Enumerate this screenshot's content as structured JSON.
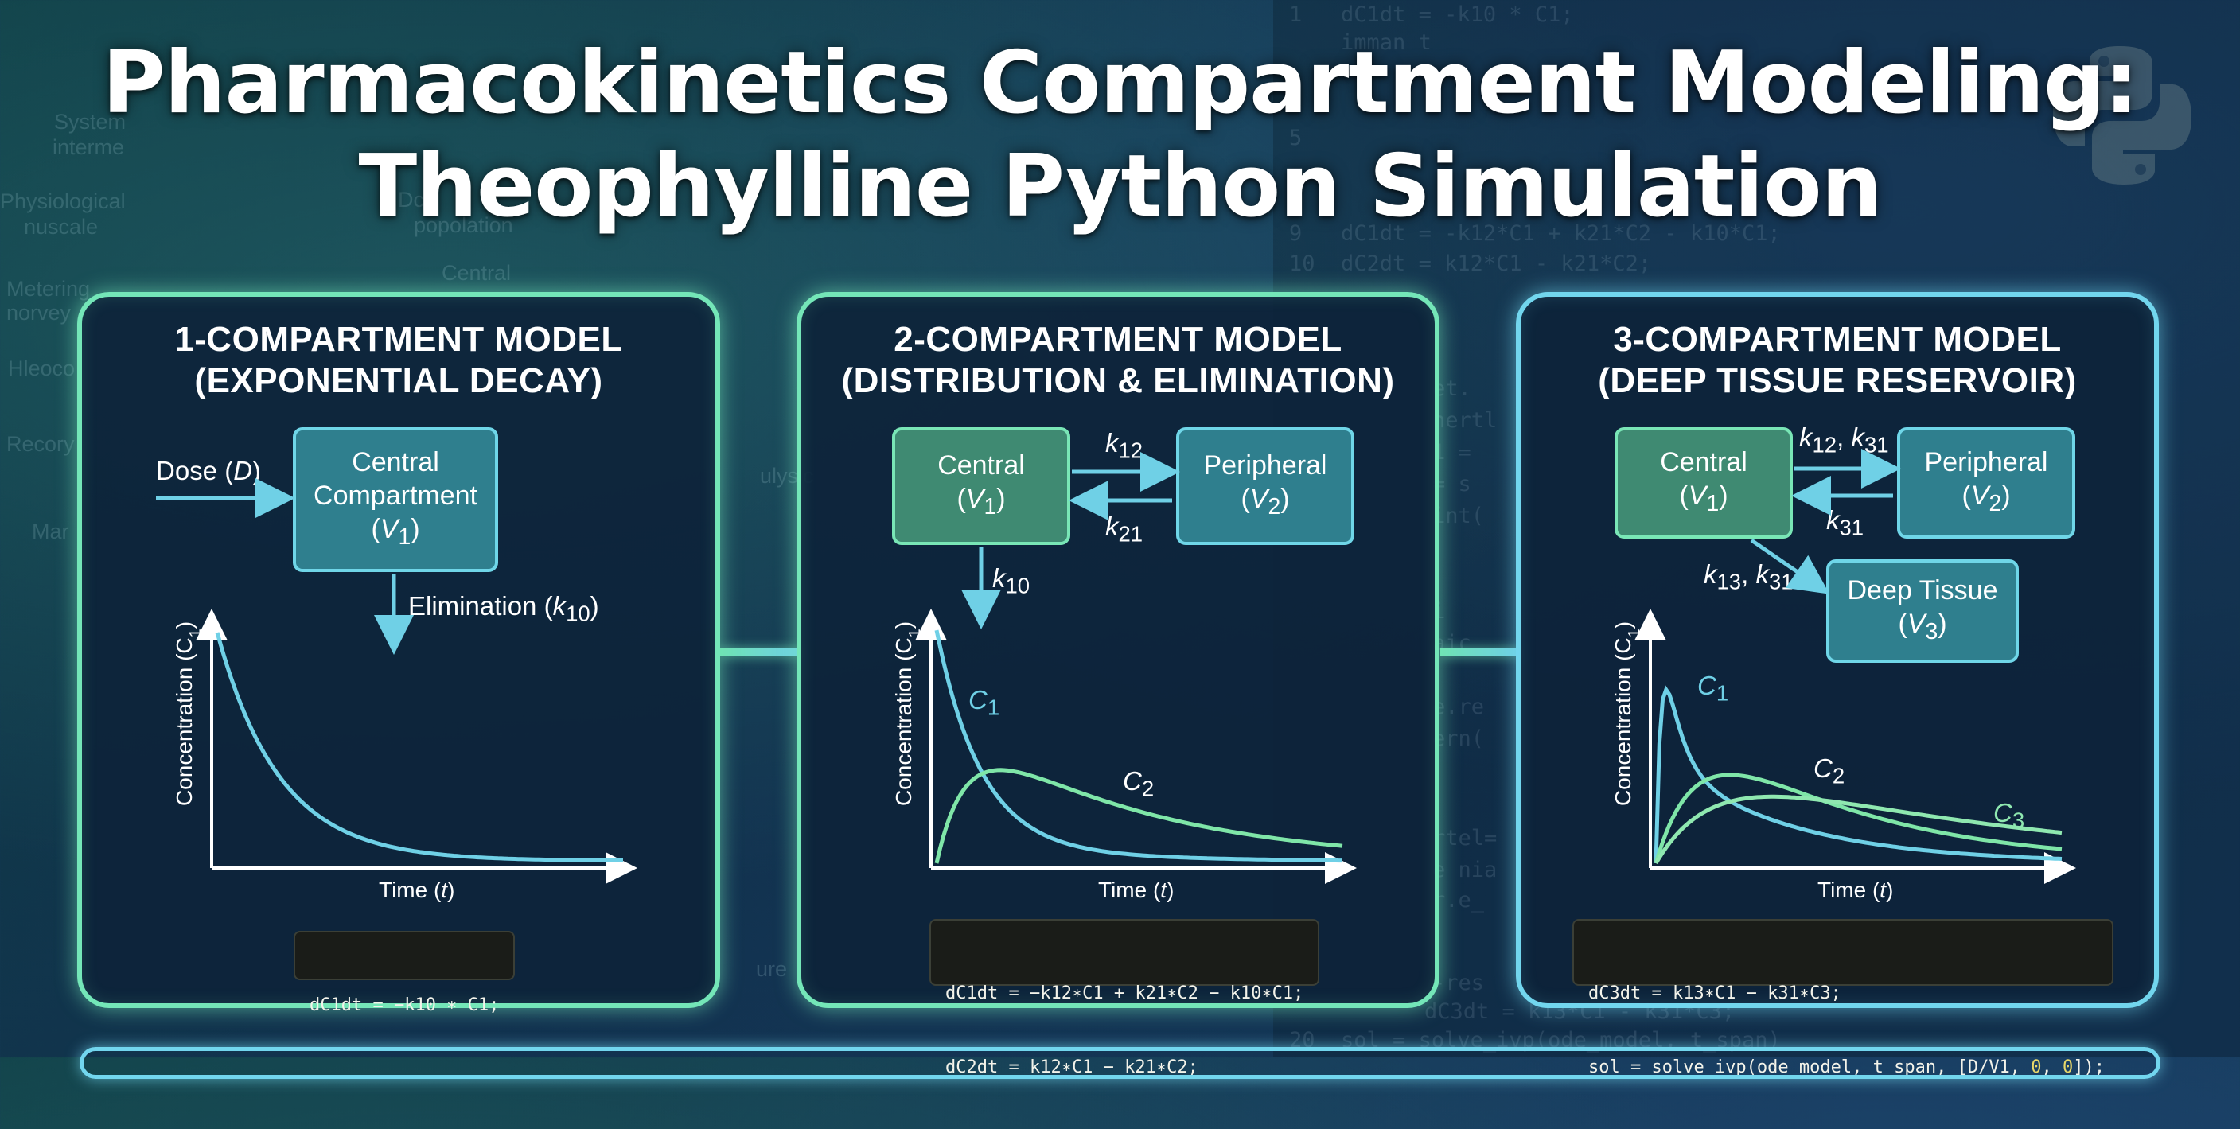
{
  "title": {
    "line1": "Pharmacokinetics Compartment Modeling:",
    "line2": "Theophylline Python Simulation"
  },
  "background": {
    "words": [
      "System",
      "interme",
      "Physiological",
      "nuscale",
      "Metering",
      "norvey",
      "Hleoco",
      "Recory",
      "Mar",
      "Central",
      "popolation",
      "Dc",
      "ulysic",
      "ure"
    ],
    "code_lines": [
      {
        "n": "1",
        "t": "dC1dt = -k10 * C1;"
      },
      {
        "n": "",
        "t": "imman t"
      },
      {
        "n": "5",
        "t": ""
      },
      {
        "n": "9",
        "t": "dC1dt = -k12*C1 + k21*C2 - k10*C1;"
      },
      {
        "n": "10",
        "t": "dC2dt = k12*C1 - k21*C2;"
      },
      {
        "n": "",
        "t": "et."
      },
      {
        "n": "",
        "t": "nertl"
      },
      {
        "n": "",
        "t": "1 ="
      },
      {
        "n": "",
        "t": "= s                                    e]);"
      },
      {
        "n": "",
        "t": "int("
      },
      {
        "n": "",
        "t": "i"
      },
      {
        "n": "",
        "t": "aic"
      },
      {
        "n": "",
        "t": "e.re"
      },
      {
        "n": "",
        "t": "ern("
      },
      {
        "n": "",
        "t": "rtel="
      },
      {
        "n": "",
        "t": "e nia"
      },
      {
        "n": "",
        "t": "r.e_"
      },
      {
        "n": "",
        "t": "-res"
      },
      {
        "n": "",
        "t": "dC3dt = k13*C1 - k31*C3;"
      },
      {
        "n": "20",
        "t": "sol = solve_ivp(ode_model, t_span)"
      }
    ]
  },
  "panels": [
    {
      "title1": "1-COMPARTMENT MODEL",
      "title2": "(EXPONENTIAL DECAY)",
      "dose_label": "Dose (",
      "dose_var": "D",
      "dose_close": ")",
      "central": {
        "l1": "Central",
        "l2": "Compartment",
        "var": "V",
        "sub": "1"
      },
      "elim_label": "Elimination (",
      "elim_var": "k",
      "elim_sub": "10",
      "elim_close": ")",
      "ylabel": "Concentration (C1)",
      "xlabel": "Time (t)",
      "curves": [
        {
          "name": "",
          "color": "#6fd0e6"
        }
      ],
      "code": [
        "dC1dt = −k10 ∗ C1;"
      ]
    },
    {
      "title1": "2-COMPARTMENT MODEL",
      "title2": "(DISTRIBUTION & ELIMINATION)",
      "central": {
        "l1": "Central",
        "var": "V",
        "sub": "1"
      },
      "peripheral": {
        "l1": "Peripheral",
        "var": "V",
        "sub": "2"
      },
      "k12": {
        "var": "k",
        "sub": "12"
      },
      "k21": {
        "var": "k",
        "sub": "21"
      },
      "k10": {
        "var": "k",
        "sub": "10"
      },
      "c1_label": "C",
      "c1_sub": "1",
      "c2_label": "C",
      "c2_sub": "2",
      "ylabel": "Concentration (C1)",
      "xlabel": "Time (t)",
      "curves": [
        {
          "name": "C1",
          "color": "#6fd0e6"
        },
        {
          "name": "C2",
          "color": "#7fe6a8"
        }
      ],
      "code": [
        "dC1dt = −k12∗C1 + k21∗C2 − k10∗C1;",
        "dC2dt = k12∗C1 − k21∗C2;"
      ]
    },
    {
      "title1": "3-COMPARTMENT MODEL",
      "title2": "(DEEP TISSUE RESERVOIR)",
      "central": {
        "l1": "Central",
        "var": "V",
        "sub": "1"
      },
      "peripheral": {
        "l1": "Peripheral",
        "var": "V",
        "sub": "2"
      },
      "deep": {
        "l1": "Deep Tissue",
        "var": "V",
        "sub": "3"
      },
      "k12k31": {
        "a": "k",
        "asub": "12",
        "sep": ", ",
        "b": "k",
        "bsub": "31"
      },
      "k31": {
        "var": "k",
        "sub": "31"
      },
      "k13k31": {
        "a": "k",
        "asub": "13",
        "sep": ", ",
        "b": "k",
        "bsub": "31"
      },
      "c1_label": "C",
      "c1_sub": "1",
      "c2_label": "C",
      "c2_sub": "2",
      "c3_label": "C",
      "c3_sub": "3",
      "ylabel": "Concentration (C1)",
      "xlabel": "Time (t)",
      "curves": [
        {
          "name": "C1",
          "color": "#6fd0e6"
        },
        {
          "name": "C2",
          "color": "#7fe6a8"
        },
        {
          "name": "C3",
          "color": "#8fe8b0"
        }
      ],
      "code": [
        "dC3dt = k13∗C1 − k31∗C3;"
      ],
      "code2_pre": "sol = solve_ivp(ode_model, t_span, [D/V1, ",
      "code2_n1": "0",
      "code2_mid": ", ",
      "code2_n2": "0",
      "code2_post": "]);"
    }
  ],
  "colors": {
    "green": "#74e6b8",
    "blue": "#72d6ee",
    "bg": "#12324f"
  }
}
